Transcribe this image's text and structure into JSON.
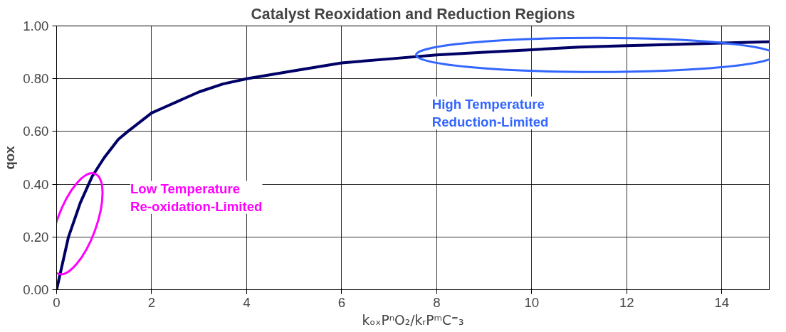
{
  "chart_data": {
    "type": "line",
    "title": "Catalyst Reoxidation and Reduction Regions",
    "xlabel": "kₒₓPⁿO₂/kᵣPᵐC⁼₃",
    "ylabel": "qox",
    "x": [
      0,
      0.25,
      0.5,
      0.75,
      1,
      1.3,
      1.5,
      2,
      2.25,
      3,
      3.5,
      4,
      5,
      6,
      7,
      8,
      9,
      10,
      11,
      12,
      13,
      14,
      15
    ],
    "series": [
      {
        "color": "#000066",
        "values": [
          0,
          0.2,
          0.33,
          0.43,
          0.5,
          0.57,
          0.6,
          0.67,
          0.69,
          0.75,
          0.78,
          0.8,
          0.83,
          0.86,
          0.875,
          0.89,
          0.9,
          0.91,
          0.92,
          0.925,
          0.93,
          0.935,
          0.94
        ]
      }
    ],
    "xlim": [
      0,
      15
    ],
    "ylim": [
      0,
      1
    ],
    "xticks": [
      0,
      2,
      4,
      6,
      8,
      10,
      12,
      14
    ],
    "yticks": [
      {
        "value": 0,
        "label": "0.00"
      },
      {
        "value": 0.2,
        "label": "0.20"
      },
      {
        "value": 0.4,
        "label": "0.40"
      },
      {
        "value": 0.6,
        "label": "0.60"
      },
      {
        "value": 0.8,
        "label": "0.80"
      },
      {
        "value": 1,
        "label": "1.00"
      }
    ],
    "grid": true,
    "marker": "none",
    "line_style": "solid",
    "annotations": [
      "Low Temperature\nRe-oxidation-Limited",
      "High Temperature\nReduction-Limited"
    ]
  }
}
